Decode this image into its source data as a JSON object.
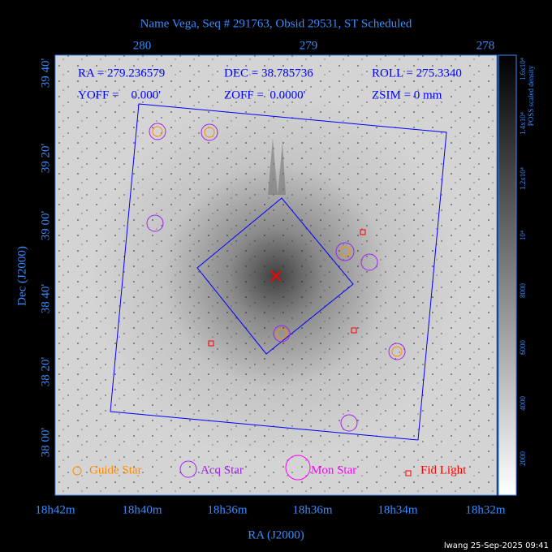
{
  "title": "Name Vega, Seq # 291763, Obsid 29531, ST Scheduled",
  "info": [
    "RA = 279.236579",
    "DEC = 38.785736",
    "ROLL = 275.3340",
    "YOFF =    0.000'",
    "ZOFF =  0.0000'",
    "ZSIM = 0 mm"
  ],
  "top_axis": {
    "ticks": [
      "280",
      "279",
      "278"
    ]
  },
  "bottom_axis": {
    "label": "RA (J2000)",
    "ticks": [
      "18h42m",
      "18h40m",
      "18h36m",
      "18h36m",
      "18h34m",
      "18h32m"
    ]
  },
  "left_axis": {
    "label": "Dec (J2000)",
    "ticks": [
      "39 40'",
      "39 20'",
      "39 00'",
      "38 40'",
      "38 20'",
      "38 00'"
    ]
  },
  "colorbar": {
    "label": "POSS scaled density",
    "ticks": [
      "2000",
      "4000",
      "6000",
      "8000",
      "10⁴",
      "1.2x10⁴",
      "1.4x10⁴",
      "1.6x10⁴"
    ]
  },
  "legend": [
    "Guide Star",
    "Acq Star",
    "Mon Star",
    "Fid Light"
  ],
  "footer": "lwang 25-Sep-2025 09:41"
}
